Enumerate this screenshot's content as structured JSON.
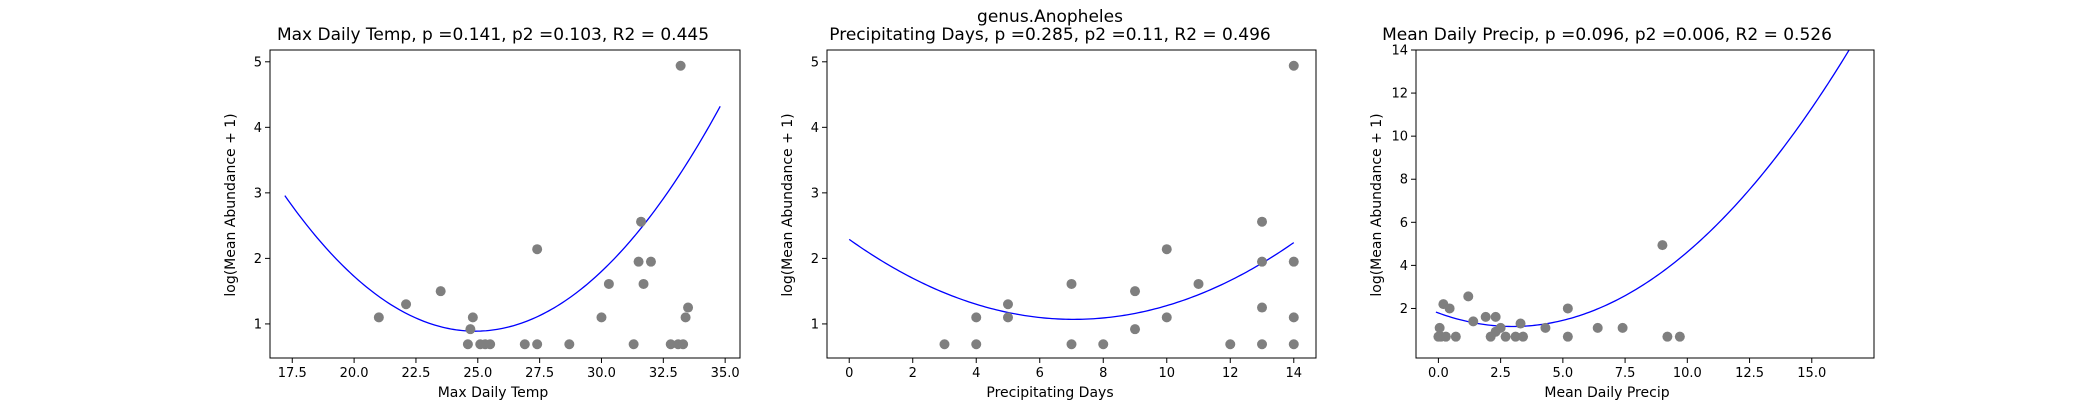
{
  "figure": {
    "suptitle": "genus.Anopheles"
  },
  "chart_data": [
    {
      "type": "scatter",
      "title": "Max Daily Temp, p =0.141, p2 =0.103, R2 = 0.445",
      "xlabel": "Max Daily Temp",
      "ylabel": "log(Mean Abundance + 1)",
      "xlim": [
        16.6,
        35.6
      ],
      "ylim": [
        0.48,
        5.18
      ],
      "xticks": [
        "17.5",
        "20.0",
        "22.5",
        "25.0",
        "27.5",
        "30.0",
        "32.5",
        "35.0"
      ],
      "yticks": [
        "1",
        "2",
        "3",
        "4",
        "5"
      ],
      "fit": {
        "a": 0.03495,
        "b": -1.74,
        "c": 22.546,
        "x_range": [
          17.2,
          34.8
        ],
        "color": "#0000ff"
      },
      "point_color": "#7f7f7f",
      "points": [
        [
          21.0,
          1.1
        ],
        [
          22.1,
          1.3
        ],
        [
          23.5,
          1.5
        ],
        [
          24.6,
          0.69
        ],
        [
          24.7,
          0.92
        ],
        [
          24.8,
          1.1
        ],
        [
          25.1,
          0.69
        ],
        [
          25.3,
          0.69
        ],
        [
          25.5,
          0.69
        ],
        [
          26.9,
          0.69
        ],
        [
          27.4,
          2.14
        ],
        [
          27.4,
          0.69
        ],
        [
          28.7,
          0.69
        ],
        [
          30.0,
          1.1
        ],
        [
          30.3,
          1.61
        ],
        [
          31.3,
          0.69
        ],
        [
          31.5,
          1.95
        ],
        [
          31.6,
          2.56
        ],
        [
          31.7,
          1.61
        ],
        [
          32.0,
          1.95
        ],
        [
          32.8,
          0.69
        ],
        [
          33.1,
          0.69
        ],
        [
          33.3,
          0.69
        ],
        [
          33.4,
          1.1
        ],
        [
          33.5,
          1.25
        ],
        [
          33.2,
          4.94
        ]
      ]
    },
    {
      "type": "scatter",
      "title": "Precipitating Days, p =0.285, p2 =0.11, R2 = 0.496",
      "xlabel": "Precipitating Days",
      "ylabel": "log(Mean Abundance + 1)",
      "xlim": [
        -0.7,
        14.7
      ],
      "ylim": [
        0.48,
        5.18
      ],
      "xticks": [
        "0",
        "2",
        "4",
        "6",
        "8",
        "10",
        "12",
        "14"
      ],
      "yticks": [
        "1",
        "2",
        "3",
        "4",
        "5"
      ],
      "fit": {
        "a": 0.0244,
        "b": -0.3451,
        "c": 2.29,
        "x_range": [
          0,
          14
        ],
        "color": "#0000ff"
      },
      "point_color": "#7f7f7f",
      "points": [
        [
          3,
          0.69
        ],
        [
          4,
          1.1
        ],
        [
          4,
          0.69
        ],
        [
          5,
          1.3
        ],
        [
          5,
          1.1
        ],
        [
          7,
          1.61
        ],
        [
          7,
          0.69
        ],
        [
          8,
          0.69
        ],
        [
          9,
          1.5
        ],
        [
          9,
          0.92
        ],
        [
          10,
          2.14
        ],
        [
          10,
          1.1
        ],
        [
          11,
          1.61
        ],
        [
          12,
          0.69
        ],
        [
          13,
          2.56
        ],
        [
          13,
          1.95
        ],
        [
          13,
          1.25
        ],
        [
          13,
          0.69
        ],
        [
          14,
          4.94
        ],
        [
          14,
          1.95
        ],
        [
          14,
          1.1
        ],
        [
          14,
          0.69
        ]
      ]
    },
    {
      "type": "scatter",
      "title": "Mean Daily Precip, p =0.096, p2 =0.006, R2 = 0.526",
      "xlabel": "Mean Daily Precip",
      "ylabel": "log(Mean Abundance + 1)",
      "xlim": [
        -0.9,
        17.5
      ],
      "ylim": [
        -0.3,
        14.0
      ],
      "xticks": [
        "0.0",
        "2.5",
        "5.0",
        "7.5",
        "10.0",
        "12.5",
        "15.0"
      ],
      "yticks": [
        "2",
        "4",
        "6",
        "8",
        "10",
        "12",
        "14"
      ],
      "fit": {
        "a": 0.0703,
        "b": -0.42,
        "c": 1.79,
        "x_range": [
          -0.1,
          16.6
        ],
        "color": "#0000ff"
      },
      "point_color": "#7f7f7f",
      "points": [
        [
          0.0,
          0.69
        ],
        [
          0.05,
          1.1
        ],
        [
          0.1,
          0.69
        ],
        [
          0.2,
          2.2
        ],
        [
          0.3,
          0.69
        ],
        [
          0.45,
          2.0
        ],
        [
          0.7,
          0.69
        ],
        [
          1.2,
          2.56
        ],
        [
          1.4,
          1.4
        ],
        [
          1.9,
          1.61
        ],
        [
          2.1,
          0.69
        ],
        [
          2.3,
          1.61
        ],
        [
          2.3,
          0.92
        ],
        [
          2.5,
          1.1
        ],
        [
          2.7,
          0.69
        ],
        [
          3.1,
          0.69
        ],
        [
          3.3,
          1.3
        ],
        [
          3.4,
          0.69
        ],
        [
          4.3,
          1.1
        ],
        [
          5.2,
          2.0
        ],
        [
          5.2,
          0.69
        ],
        [
          6.4,
          1.1
        ],
        [
          7.4,
          1.1
        ],
        [
          9.0,
          4.94
        ],
        [
          9.2,
          0.69
        ],
        [
          9.7,
          0.69
        ]
      ]
    }
  ]
}
